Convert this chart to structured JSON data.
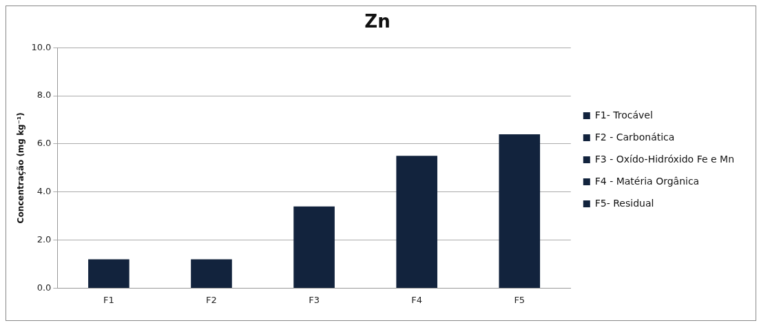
{
  "chart_data": {
    "type": "bar",
    "title": "Zn",
    "ylabel": "Concentração (mg kg⁻¹)",
    "categories": [
      "F1",
      "F2",
      "F3",
      "F4",
      "F5"
    ],
    "series": [
      {
        "name": "F1- Trocável",
        "color": "#12233d",
        "values": [
          1.2,
          null,
          null,
          null,
          null
        ]
      },
      {
        "name": "F2 - Carbonática",
        "color": "#12233d",
        "values": [
          null,
          1.2,
          null,
          null,
          null
        ]
      },
      {
        "name": "F3 - Oxído-Hidróxido Fe e Mn",
        "color": "#12233d",
        "values": [
          null,
          null,
          3.4,
          null,
          null
        ]
      },
      {
        "name": "F4 - Matéria Orgânica",
        "color": "#12233d",
        "values": [
          null,
          null,
          null,
          5.5,
          null
        ]
      },
      {
        "name": "F5- Residual",
        "color": "#12233d",
        "values": [
          null,
          null,
          null,
          null,
          6.4
        ]
      }
    ],
    "ylim": [
      0,
      10
    ],
    "yticks": [
      {
        "value": 0,
        "label": "0.0"
      },
      {
        "value": 2,
        "label": "2.0"
      },
      {
        "value": 4,
        "label": "4.0"
      },
      {
        "value": 6,
        "label": "6.0"
      },
      {
        "value": 8,
        "label": "8.0"
      },
      {
        "value": 10,
        "label": "10.0"
      }
    ],
    "grid": "y",
    "legend": "right"
  }
}
